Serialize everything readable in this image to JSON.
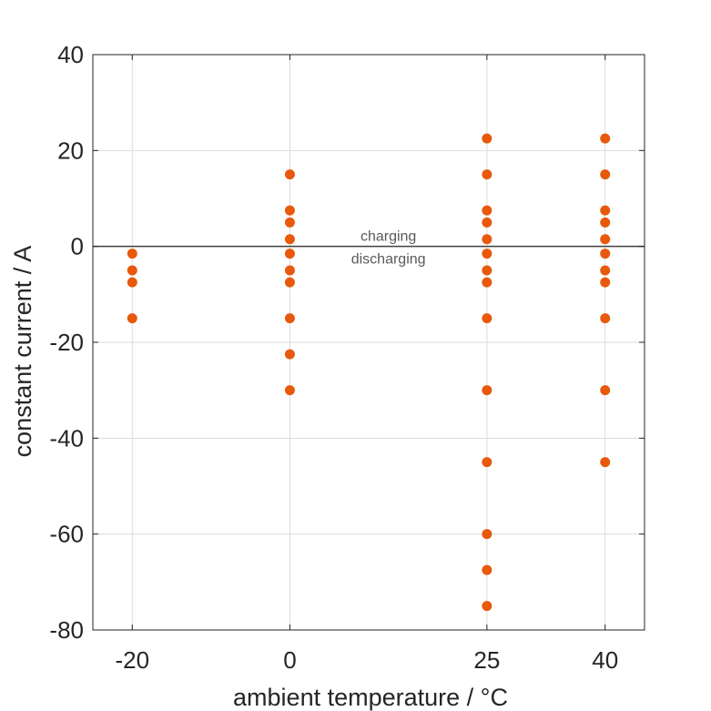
{
  "chart_data": {
    "type": "scatter",
    "xlabel": "ambient temperature / °C",
    "ylabel": "constant current / A",
    "xticks": [
      -20,
      0,
      25,
      40
    ],
    "xtick_labels": [
      "-20",
      "0",
      "25",
      "40"
    ],
    "yticks": [
      -80,
      -60,
      -40,
      -20,
      0,
      20,
      40
    ],
    "ytick_labels": [
      "-80",
      "-60",
      "-40",
      "-20",
      "0",
      "20",
      "40"
    ],
    "xlim": [
      -25,
      45
    ],
    "ylim": [
      -80,
      40
    ],
    "grid": true,
    "zero_line": true,
    "annotations": {
      "above": "charging",
      "below": "discharging"
    },
    "marker_color": "#e8590c",
    "points": [
      {
        "x": -20,
        "y": -1.5
      },
      {
        "x": -20,
        "y": -5
      },
      {
        "x": -20,
        "y": -7.5
      },
      {
        "x": -20,
        "y": -15
      },
      {
        "x": 0,
        "y": 15
      },
      {
        "x": 0,
        "y": 7.5
      },
      {
        "x": 0,
        "y": 5
      },
      {
        "x": 0,
        "y": 1.5
      },
      {
        "x": 0,
        "y": -1.5
      },
      {
        "x": 0,
        "y": -5
      },
      {
        "x": 0,
        "y": -7.5
      },
      {
        "x": 0,
        "y": -15
      },
      {
        "x": 0,
        "y": -22.5
      },
      {
        "x": 0,
        "y": -30
      },
      {
        "x": 25,
        "y": 22.5
      },
      {
        "x": 25,
        "y": 15
      },
      {
        "x": 25,
        "y": 7.5
      },
      {
        "x": 25,
        "y": 5
      },
      {
        "x": 25,
        "y": 1.5
      },
      {
        "x": 25,
        "y": -1.5
      },
      {
        "x": 25,
        "y": -5
      },
      {
        "x": 25,
        "y": -7.5
      },
      {
        "x": 25,
        "y": -15
      },
      {
        "x": 25,
        "y": -30
      },
      {
        "x": 25,
        "y": -45
      },
      {
        "x": 25,
        "y": -60
      },
      {
        "x": 25,
        "y": -67.5
      },
      {
        "x": 25,
        "y": -75
      },
      {
        "x": 40,
        "y": 22.5
      },
      {
        "x": 40,
        "y": 15
      },
      {
        "x": 40,
        "y": 7.5
      },
      {
        "x": 40,
        "y": 5
      },
      {
        "x": 40,
        "y": 1.5
      },
      {
        "x": 40,
        "y": -1.5
      },
      {
        "x": 40,
        "y": -5
      },
      {
        "x": 40,
        "y": -7.5
      },
      {
        "x": 40,
        "y": -15
      },
      {
        "x": 40,
        "y": -30
      },
      {
        "x": 40,
        "y": -45
      }
    ]
  }
}
